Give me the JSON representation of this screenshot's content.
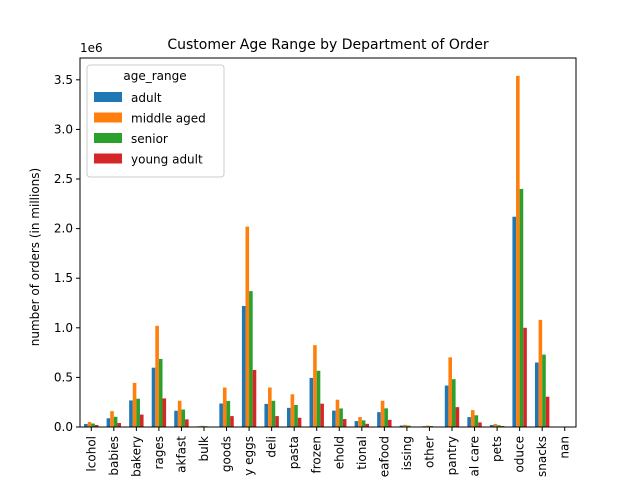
{
  "chart_data": {
    "type": "bar",
    "title": "Customer Age Range by Department of Order",
    "xlabel": "",
    "ylabel": "number of orders (in millions)",
    "offset_label": "1e6",
    "ylim": [
      0,
      3720000
    ],
    "yticks": [
      0,
      500000,
      1000000,
      1500000,
      2000000,
      2500000,
      3000000,
      3500000
    ],
    "ytick_labels": [
      "0.0",
      "0.5",
      "1.0",
      "1.5",
      "2.0",
      "2.5",
      "3.0",
      "3.5"
    ],
    "grid": false,
    "categories": [
      "alcohol",
      "babies",
      "bakery",
      "beverages",
      "breakfast",
      "bulk",
      "canned goods",
      "dairy eggs",
      "deli",
      "dry goods pasta",
      "frozen",
      "household",
      "international",
      "meat seafood",
      "missing",
      "other",
      "pantry",
      "personal care",
      "pets",
      "produce",
      "snacks",
      "nan"
    ],
    "tick_labels": [
      "lcohol",
      "babies",
      "bakery",
      "rages",
      "akfast",
      "bulk",
      "goods",
      "y eggs",
      "deli",
      "pasta",
      "frozen",
      "ehold",
      "tional",
      "eafood",
      "issing",
      "other",
      "pantry",
      "al care",
      "pets",
      "oduce",
      "snacks",
      "nan"
    ],
    "legend": {
      "title": "age_range",
      "placement": "top-left"
    },
    "series": [
      {
        "name": "adult",
        "color": "#1f77b4",
        "values": [
          30000,
          88000,
          268000,
          598000,
          164000,
          7000,
          237000,
          1220000,
          233000,
          193000,
          495000,
          165000,
          60000,
          150000,
          15000,
          8000,
          418000,
          100000,
          20000,
          2120000,
          650000,
          0
        ]
      },
      {
        "name": "middle aged",
        "color": "#ff7f0e",
        "values": [
          50000,
          160000,
          445000,
          1020000,
          265000,
          12000,
          398000,
          2020000,
          398000,
          330000,
          825000,
          275000,
          100000,
          265000,
          22000,
          14000,
          702000,
          170000,
          30000,
          3540000,
          1080000,
          0
        ]
      },
      {
        "name": "senior",
        "color": "#2ca02c",
        "values": [
          35000,
          103000,
          285000,
          686000,
          176000,
          8000,
          262000,
          1370000,
          264000,
          222000,
          567000,
          187000,
          67000,
          188000,
          14000,
          10000,
          482000,
          118000,
          18000,
          2400000,
          730000,
          0
        ]
      },
      {
        "name": "young adult",
        "color": "#d62728",
        "values": [
          20000,
          40000,
          125000,
          288000,
          77000,
          3000,
          110000,
          575000,
          110000,
          93000,
          235000,
          80000,
          32000,
          72000,
          5000,
          4000,
          200000,
          46000,
          10000,
          1000000,
          305000,
          0
        ]
      }
    ]
  }
}
